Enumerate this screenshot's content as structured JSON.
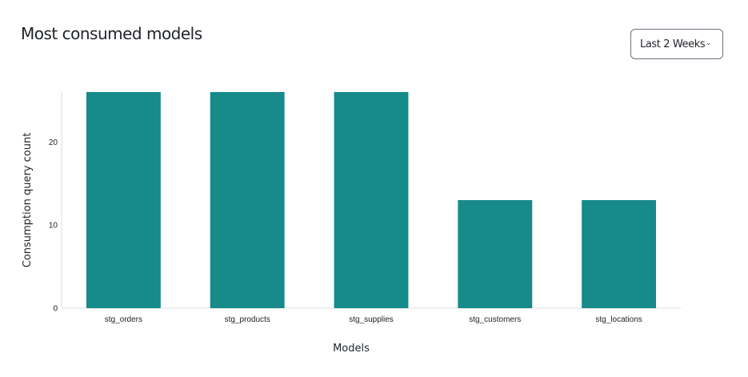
{
  "header": {
    "title": "Most consumed models"
  },
  "filter": {
    "selected": "Last 2 Weeks",
    "icon": "chevron-down-icon"
  },
  "chart_data": {
    "type": "bar",
    "categories": [
      "stg_orders",
      "stg_products",
      "stg_supplies",
      "stg_customers",
      "stg_locations"
    ],
    "values": [
      26,
      26,
      26,
      13,
      13
    ],
    "xlabel": "Models",
    "ylabel": "Consumption query count",
    "yticks": [
      0,
      10,
      20
    ],
    "ylim": [
      0,
      26
    ],
    "grid": false,
    "color": "#178a8a"
  }
}
